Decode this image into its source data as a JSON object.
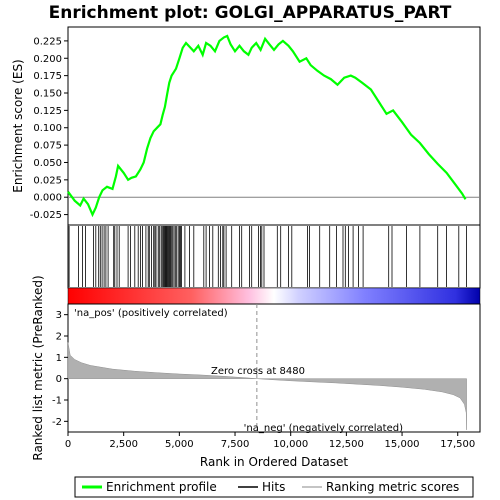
{
  "chart_data": {
    "type": "line",
    "title": "Enrichment plot: GOLGI_APPARATUS_PART",
    "top_panel": {
      "ylabel": "Enrichment score (ES)",
      "ylim": [
        -0.04,
        0.245
      ],
      "yticks": [
        "-0.025",
        "0.000",
        "0.025",
        "0.050",
        "0.075",
        "0.100",
        "0.125",
        "0.150",
        "0.175",
        "0.200",
        "0.225"
      ],
      "series": [
        {
          "name": "Enrichment profile",
          "color": "#00ff00",
          "x": [
            0,
            300,
            550,
            700,
            900,
            1100,
            1250,
            1400,
            1550,
            1750,
            2000,
            2150,
            2250,
            2500,
            2700,
            2850,
            3050,
            3250,
            3400,
            3550,
            3700,
            3850,
            4000,
            4150,
            4250,
            4350,
            4450,
            4550,
            4650,
            4750,
            4850,
            5000,
            5150,
            5300,
            5500,
            5650,
            5850,
            6050,
            6200,
            6400,
            6600,
            6800,
            7000,
            7150,
            7300,
            7500,
            7700,
            7900,
            8100,
            8250,
            8450,
            8650,
            8850,
            9050,
            9250,
            9450,
            9650,
            9900,
            10100,
            10400,
            10700,
            10900,
            11200,
            11500,
            11800,
            12100,
            12400,
            12700,
            12900,
            13200,
            13600,
            14000,
            14300,
            14600,
            15000,
            15400,
            15800,
            16200,
            16600,
            17000,
            17400,
            17700,
            17850
          ],
          "y": [
            0.008,
            -0.005,
            -0.012,
            -0.002,
            -0.01,
            -0.025,
            -0.015,
            0.0,
            0.01,
            0.015,
            0.012,
            0.03,
            0.045,
            0.035,
            0.025,
            0.028,
            0.03,
            0.04,
            0.05,
            0.07,
            0.085,
            0.095,
            0.1,
            0.105,
            0.118,
            0.13,
            0.148,
            0.165,
            0.175,
            0.18,
            0.185,
            0.2,
            0.215,
            0.222,
            0.215,
            0.21,
            0.218,
            0.205,
            0.222,
            0.218,
            0.21,
            0.225,
            0.23,
            0.232,
            0.22,
            0.21,
            0.218,
            0.21,
            0.205,
            0.215,
            0.222,
            0.212,
            0.228,
            0.22,
            0.212,
            0.22,
            0.225,
            0.218,
            0.21,
            0.195,
            0.2,
            0.19,
            0.182,
            0.175,
            0.17,
            0.162,
            0.172,
            0.175,
            0.172,
            0.165,
            0.155,
            0.135,
            0.12,
            0.125,
            0.108,
            0.09,
            0.078,
            0.062,
            0.048,
            0.035,
            0.018,
            0.005,
            -0.003
          ]
        }
      ]
    },
    "hits": {
      "name": "Hits",
      "x": [
        50,
        470,
        650,
        780,
        1150,
        1250,
        1380,
        1450,
        1530,
        1620,
        1700,
        1800,
        2050,
        2100,
        2200,
        2300,
        2700,
        2800,
        3000,
        3150,
        3250,
        3350,
        3500,
        3600,
        3650,
        3750,
        3850,
        3900,
        3950,
        4050,
        4100,
        4180,
        4230,
        4280,
        4320,
        4360,
        4400,
        4440,
        4480,
        4520,
        4560,
        4600,
        4640,
        4700,
        4760,
        4820,
        4880,
        4950,
        5000,
        5050,
        5100,
        5250,
        5450,
        5650,
        6100,
        6200,
        6350,
        6500,
        6750,
        6850,
        6950,
        7000,
        7100,
        7350,
        7700,
        7800,
        8150,
        8250,
        8550,
        8650,
        8700,
        8800,
        9400,
        9550,
        9900,
        10050,
        10750,
        10850,
        11300,
        11750,
        12050,
        12350,
        12450,
        12600,
        12800,
        13050,
        13250,
        14400,
        14550,
        15200,
        15800,
        16600,
        17000,
        17550,
        17900
      ]
    },
    "bottom_panel": {
      "ylabel": "Ranked list metric (PreRanked)",
      "ylim": [
        -2.5,
        3.5
      ],
      "yticks": [
        "-2",
        "-1",
        "0",
        "1",
        "2",
        "3"
      ],
      "metric_shape": [
        [
          0,
          1.7
        ],
        [
          100,
          1.1
        ],
        [
          300,
          0.9
        ],
        [
          600,
          0.75
        ],
        [
          1000,
          0.62
        ],
        [
          2000,
          0.45
        ],
        [
          3000,
          0.35
        ],
        [
          4000,
          0.28
        ],
        [
          5000,
          0.22
        ],
        [
          6000,
          0.17
        ],
        [
          7000,
          0.11
        ],
        [
          8000,
          0.04
        ],
        [
          8480,
          0.0
        ],
        [
          9000,
          -0.04
        ],
        [
          10000,
          -0.1
        ],
        [
          11000,
          -0.15
        ],
        [
          12000,
          -0.2
        ],
        [
          13000,
          -0.26
        ],
        [
          14000,
          -0.32
        ],
        [
          15000,
          -0.4
        ],
        [
          16000,
          -0.5
        ],
        [
          16800,
          -0.62
        ],
        [
          17300,
          -0.75
        ],
        [
          17600,
          -0.9
        ],
        [
          17800,
          -1.2
        ],
        [
          17880,
          -1.6
        ],
        [
          17900,
          -2.4
        ]
      ],
      "zero_cross_label": "Zero cross at 8480",
      "zero_cross": 8480,
      "pos_label": "'na_pos' (positively correlated)",
      "neg_label": "'na_neg' (negatively correlated)"
    },
    "xlabel": "Rank in Ordered Dataset",
    "xlim": [
      0,
      18500
    ],
    "xticks": [
      "0",
      "2,500",
      "5,000",
      "7,500",
      "10,000",
      "12,500",
      "15,000",
      "17,500"
    ],
    "legend": {
      "placement": "bottom",
      "entries": [
        "Enrichment profile",
        "Hits",
        "Ranking metric scores"
      ]
    },
    "colors": {
      "profile": "#00ff00",
      "hits": "#000000",
      "metric_fill": "#b0b0b0",
      "pos_text": "#cc0000",
      "neg_text": "#0000cc",
      "zero_line": "#909090"
    }
  }
}
